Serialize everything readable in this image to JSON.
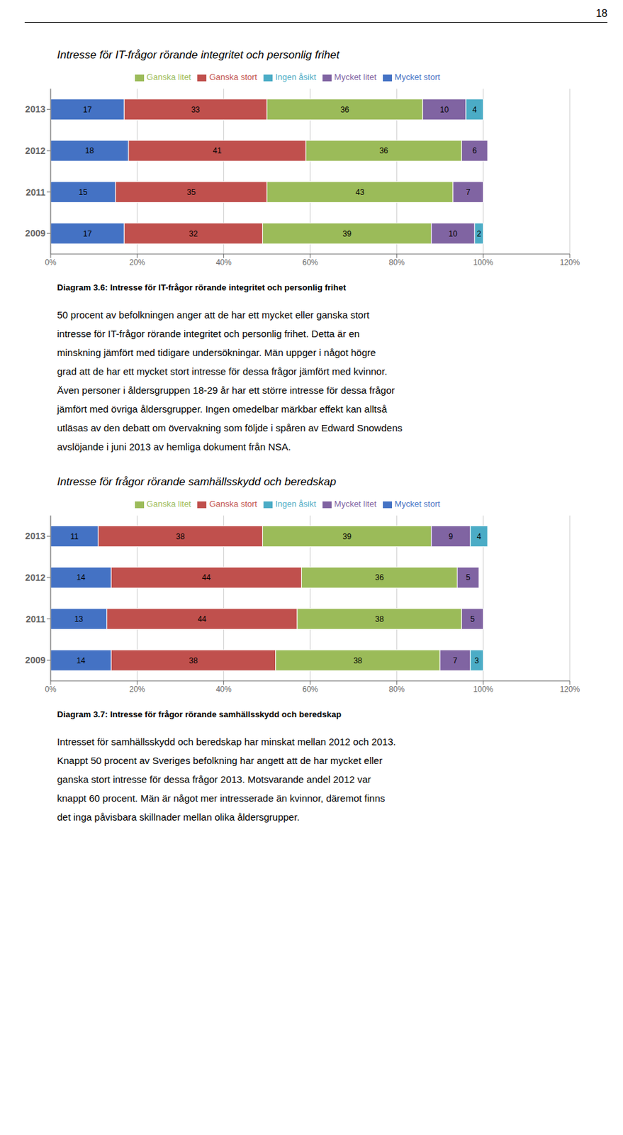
{
  "chart_data": [
    {
      "type": "bar",
      "title": "Intresse för IT-frågor rörande integritet och personlig frihet",
      "orientation": "horizontal",
      "stacked": true,
      "data_labels": true,
      "grid": true,
      "legend": "top",
      "categories": [
        "2013",
        "2012",
        "2011",
        "2009"
      ],
      "series": [
        {
          "name": "Mycket stort",
          "color": "#4472C4",
          "values": [
            17,
            18,
            15,
            17
          ]
        },
        {
          "name": "Ganska stort",
          "color": "#C0504D",
          "values": [
            33,
            41,
            35,
            32
          ]
        },
        {
          "name": "Ganska litet",
          "color": "#9BBB59",
          "values": [
            36,
            36,
            43,
            39
          ]
        },
        {
          "name": "Mycket litet",
          "color": "#8064A2",
          "values": [
            10,
            6,
            7,
            10
          ]
        },
        {
          "name": "Ingen åsikt",
          "color": "#4BACC6",
          "values": [
            4,
            0,
            0,
            2
          ]
        }
      ],
      "xlim": [
        0,
        120
      ],
      "xticks": [
        {
          "value": 0,
          "label": "0%"
        },
        {
          "value": 20,
          "label": "20%"
        },
        {
          "value": 40,
          "label": "40%"
        },
        {
          "value": 60,
          "label": "60%"
        },
        {
          "value": 80,
          "label": "80%"
        },
        {
          "value": 100,
          "label": "100%"
        },
        {
          "value": 120,
          "label": "120%"
        }
      ],
      "annotations": [
        "18",
        "Diagram 3.6: Intresse för IT-frågor rörande integritet och personlig frihet",
        "50 procent av befolkningen anger att de har ett mycket eller ganska stort",
        "intresse för IT-frågor rörande integritet och personlig frihet. Detta är en",
        "minskning jämfört med tidigare undersökningar. Män uppger i något högre",
        "grad att de har ett mycket stort intresse för dessa frågor jämfört med kvinnor.",
        "Även personer i åldersgruppen 18-29 år har ett större intresse för dessa frågor",
        "jämfört med övriga åldersgrupper. Ingen omedelbar märkbar effekt kan alltså",
        "utläsas av den debatt om övervakning som följde i spåren av Edward Snowdens",
        "avslöjande i juni 2013 av hemliga dokument från NSA."
      ]
    },
    {
      "type": "bar",
      "title": "Intresse för frågor rörande samhällsskydd och beredskap",
      "orientation": "horizontal",
      "stacked": true,
      "data_labels": true,
      "grid": true,
      "legend": "top",
      "categories": [
        "2013",
        "2012",
        "2011",
        "2009"
      ],
      "series": [
        {
          "name": "Mycket stort",
          "color": "#4472C4",
          "values": [
            11,
            14,
            13,
            14
          ]
        },
        {
          "name": "Ganska stort",
          "color": "#C0504D",
          "values": [
            38,
            44,
            44,
            38
          ]
        },
        {
          "name": "Ganska litet",
          "color": "#9BBB59",
          "values": [
            39,
            36,
            38,
            38
          ]
        },
        {
          "name": "Mycket litet",
          "color": "#8064A2",
          "values": [
            9,
            5,
            5,
            7
          ]
        },
        {
          "name": "Ingen åsikt",
          "color": "#4BACC6",
          "values": [
            4,
            0,
            0,
            3
          ]
        }
      ],
      "xlim": [
        0,
        120
      ],
      "xticks": [
        {
          "value": 0,
          "label": "0%"
        },
        {
          "value": 20,
          "label": "20%"
        },
        {
          "value": 40,
          "label": "40%"
        },
        {
          "value": 60,
          "label": "60%"
        },
        {
          "value": 80,
          "label": "80%"
        },
        {
          "value": 100,
          "label": "100%"
        },
        {
          "value": 120,
          "label": "120%"
        }
      ],
      "annotations": [
        "Diagram 3.7: Intresse för frågor rörande samhällsskydd och beredskap",
        "Intresset för samhällsskydd och beredskap har minskat mellan 2012 och 2013.",
        "Knappt 50 procent av Sveriges befolkning har angett att de har mycket eller",
        "ganska stort intresse för dessa frågor 2013. Motsvarande andel 2012 var",
        "knappt 60 procent. Män är något mer intresserade än kvinnor, däremot finns",
        "det inga påvisbara skillnader mellan olika åldersgrupper."
      ]
    }
  ]
}
